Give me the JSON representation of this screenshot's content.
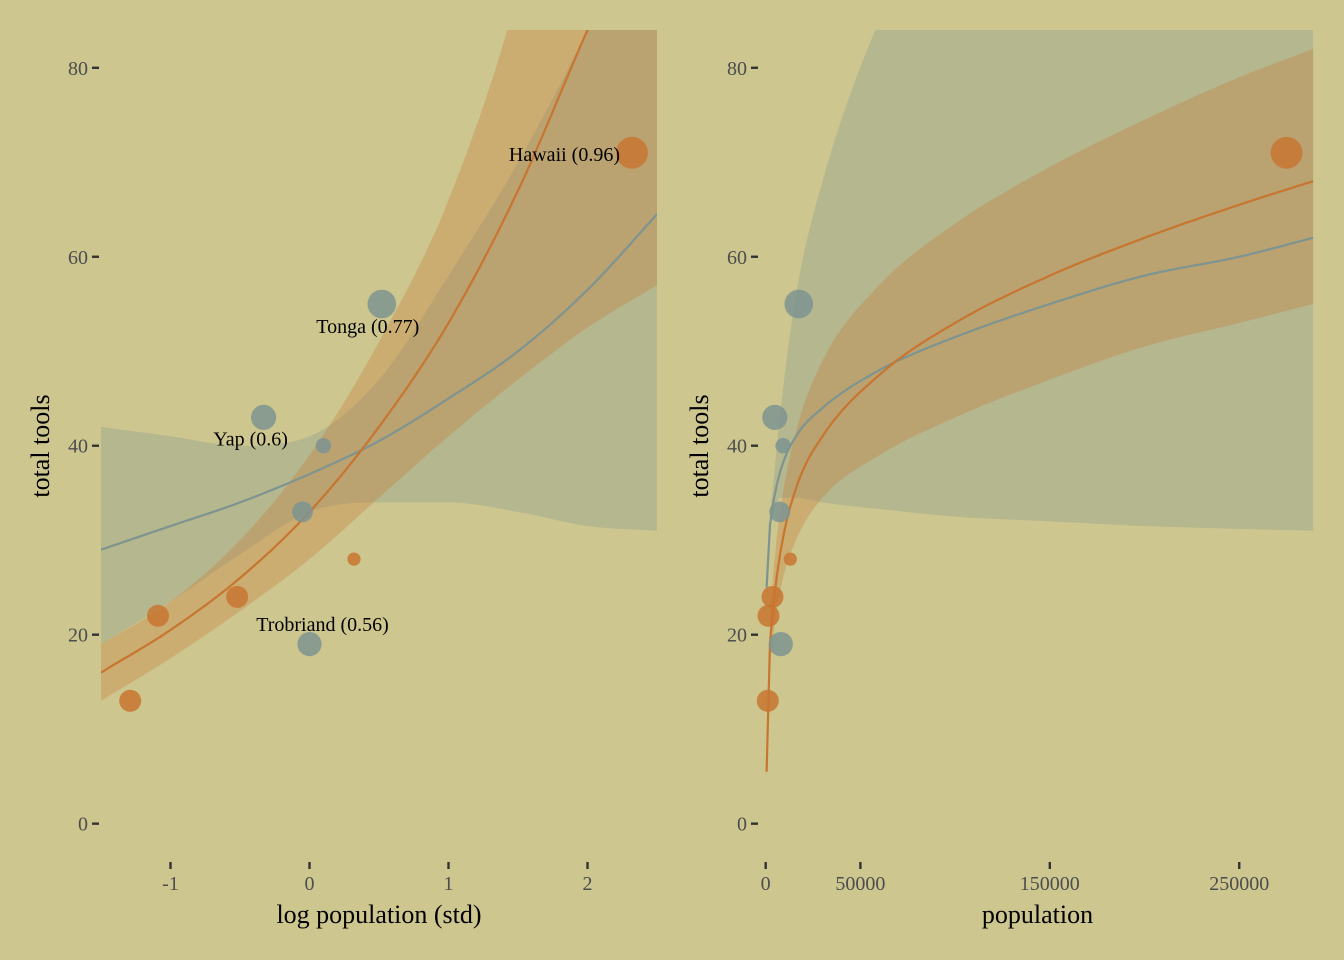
{
  "colors": {
    "background": "#CDC68F",
    "orange": "#C87530",
    "gray": "#7E9490",
    "orange_band": "#C8A060",
    "gray_band": "#AEB9A0"
  },
  "chart_data": [
    {
      "type": "scatter",
      "xlabel": "log population (std)",
      "ylabel": "total tools",
      "xlim": [
        -1.5,
        2.5
      ],
      "ylim": [
        -3,
        84
      ],
      "xticks": [
        -1,
        0,
        1,
        2
      ],
      "xtick_labels": [
        "-1",
        "0",
        "1",
        "2"
      ],
      "yticks": [
        0,
        20,
        40,
        60,
        80
      ],
      "ytick_labels": [
        "0",
        "20",
        "40",
        "60",
        "80"
      ],
      "grid": false,
      "legend": "none",
      "points": [
        {
          "x": -1.29,
          "y": 13,
          "group": "orange",
          "size": 1.0
        },
        {
          "x": -1.09,
          "y": 22,
          "group": "orange",
          "size": 1.0
        },
        {
          "x": -0.52,
          "y": 24,
          "group": "orange",
          "size": 1.0
        },
        {
          "x": -0.33,
          "y": 43,
          "group": "gray",
          "size": 1.15
        },
        {
          "x": -0.05,
          "y": 33,
          "group": "gray",
          "size": 0.95
        },
        {
          "x": 0.0,
          "y": 19,
          "group": "gray",
          "size": 1.1
        },
        {
          "x": 0.1,
          "y": 40,
          "group": "gray",
          "size": 0.7
        },
        {
          "x": 0.32,
          "y": 28,
          "group": "orange",
          "size": 0.6
        },
        {
          "x": 0.52,
          "y": 55,
          "group": "gray",
          "size": 1.3
        },
        {
          "x": 2.32,
          "y": 71,
          "group": "orange",
          "size": 1.45
        }
      ],
      "annotations": [
        {
          "text": "Hawaii (0.96)",
          "x": 2.32,
          "y": 71,
          "anchor": "end",
          "dx": -12,
          "dy": 8
        },
        {
          "text": "Tonga (0.77)",
          "x": 0.52,
          "y": 55,
          "anchor": "middle",
          "dx": -14,
          "dy": 29
        },
        {
          "text": "Yap (0.6)",
          "x": -0.33,
          "y": 43,
          "anchor": "middle",
          "dx": -13,
          "dy": 28
        },
        {
          "text": "Trobriand (0.56)",
          "x": 0.0,
          "y": 19,
          "anchor": "middle",
          "dx": 13,
          "dy": -13
        }
      ],
      "curves": {
        "x": [
          -1.5,
          -1.0,
          -0.5,
          0.0,
          0.5,
          1.0,
          1.5,
          2.0,
          2.5
        ],
        "orange": {
          "mean": [
            16,
            20.5,
            26,
            33,
            42,
            53,
            67,
            84,
            100
          ],
          "lower": [
            13,
            17.5,
            22.5,
            28,
            34.5,
            41,
            47,
            52.5,
            57
          ],
          "upper": [
            19,
            23.5,
            30,
            39,
            51,
            66,
            88,
            120,
            150
          ]
        },
        "gray": {
          "mean": [
            29,
            31.5,
            34,
            37,
            40.5,
            45,
            50,
            56.5,
            64.5
          ],
          "lower": [
            19,
            23.5,
            28.5,
            33,
            34,
            34,
            33,
            31.5,
            31
          ],
          "upper": [
            42,
            41,
            40,
            41,
            47,
            58,
            70,
            84,
            100
          ]
        }
      }
    },
    {
      "type": "scatter",
      "xlabel": "population",
      "ylabel": "total tools",
      "xlim": [
        -3000,
        290000
      ],
      "ylim": [
        -3,
        84
      ],
      "xticks": [
        0,
        50000,
        150000,
        250000
      ],
      "xtick_labels": [
        "0",
        "50000",
        "150000",
        "250000"
      ],
      "yticks": [
        0,
        20,
        40,
        60,
        80
      ],
      "ytick_labels": [
        "0",
        "20",
        "40",
        "60",
        "80"
      ],
      "grid": false,
      "legend": "none",
      "points": [
        {
          "x": 1100,
          "y": 13,
          "group": "orange",
          "size": 1.0
        },
        {
          "x": 1500,
          "y": 22,
          "group": "orange",
          "size": 1.0
        },
        {
          "x": 3600,
          "y": 24,
          "group": "orange",
          "size": 1.0
        },
        {
          "x": 4800,
          "y": 43,
          "group": "gray",
          "size": 1.15
        },
        {
          "x": 7400,
          "y": 33,
          "group": "gray",
          "size": 0.95
        },
        {
          "x": 8000,
          "y": 19,
          "group": "gray",
          "size": 1.1
        },
        {
          "x": 9200,
          "y": 40,
          "group": "gray",
          "size": 0.7
        },
        {
          "x": 13000,
          "y": 28,
          "group": "orange",
          "size": 0.6
        },
        {
          "x": 17500,
          "y": 55,
          "group": "gray",
          "size": 1.3
        },
        {
          "x": 275000,
          "y": 71,
          "group": "orange",
          "size": 1.45
        }
      ],
      "curves": {
        "x": [
          500,
          1000,
          2000,
          4000,
          8000,
          16000,
          30000,
          60000,
          100000,
          150000,
          200000,
          250000,
          289000
        ],
        "orange": {
          "mean": [
            5.5,
            12,
            18,
            23,
            29,
            35.5,
            41,
            47.5,
            53,
            58,
            62,
            65.5,
            68
          ],
          "lower": [
            4.5,
            10,
            15.5,
            20,
            25,
            30,
            34.5,
            39,
            43,
            47,
            50.5,
            53,
            55
          ],
          "upper": [
            6.5,
            14,
            20.5,
            26.5,
            33.5,
            41.5,
            49,
            57,
            63.5,
            69.5,
            74.5,
            79,
            82
          ]
        },
        "gray": {
          "mean": [
            25,
            28,
            31,
            34,
            37.5,
            41,
            44,
            48,
            51.5,
            55,
            58,
            60,
            62
          ],
          "lower": [
            24,
            28,
            31,
            33,
            34.5,
            34.5,
            34,
            33.3,
            32.5,
            32,
            31.5,
            31.2,
            31
          ],
          "upper": [
            25,
            28.5,
            32,
            36,
            44,
            56,
            68,
            85,
            100,
            115,
            128,
            140,
            150
          ]
        }
      }
    }
  ]
}
